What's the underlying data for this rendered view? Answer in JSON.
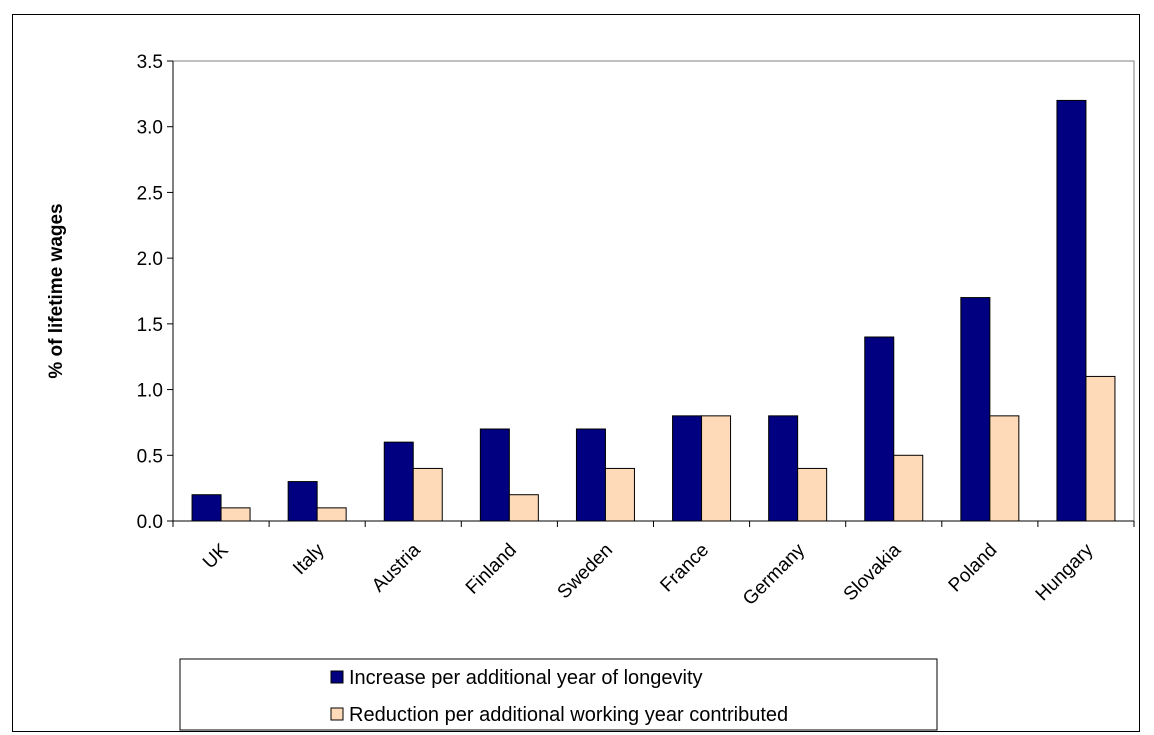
{
  "chart_data": {
    "type": "bar",
    "title": "",
    "xlabel": "",
    "ylabel": "% of lifetime wages",
    "categories": [
      "UK",
      "Italy",
      "Austria",
      "Finland",
      "Sweden",
      "France",
      "Germany",
      "Slovakia",
      "Poland",
      "Hungary"
    ],
    "series": [
      {
        "name": "Increase per additional year of longevity",
        "color": "#000080",
        "values": [
          0.2,
          0.3,
          0.6,
          0.7,
          0.7,
          0.8,
          0.8,
          1.4,
          1.7,
          3.2
        ]
      },
      {
        "name": "Reduction per additional working year contributed",
        "color": "#FFDAB9",
        "values": [
          0.1,
          0.1,
          0.4,
          0.2,
          0.4,
          0.8,
          0.4,
          0.5,
          0.8,
          1.1
        ]
      }
    ],
    "ylim": [
      0,
      3.5
    ],
    "yticks": [
      "0.0",
      "0.5",
      "1.0",
      "1.5",
      "2.0",
      "2.5",
      "3.0",
      "3.5"
    ],
    "grid": false,
    "legend_position": "bottom"
  }
}
